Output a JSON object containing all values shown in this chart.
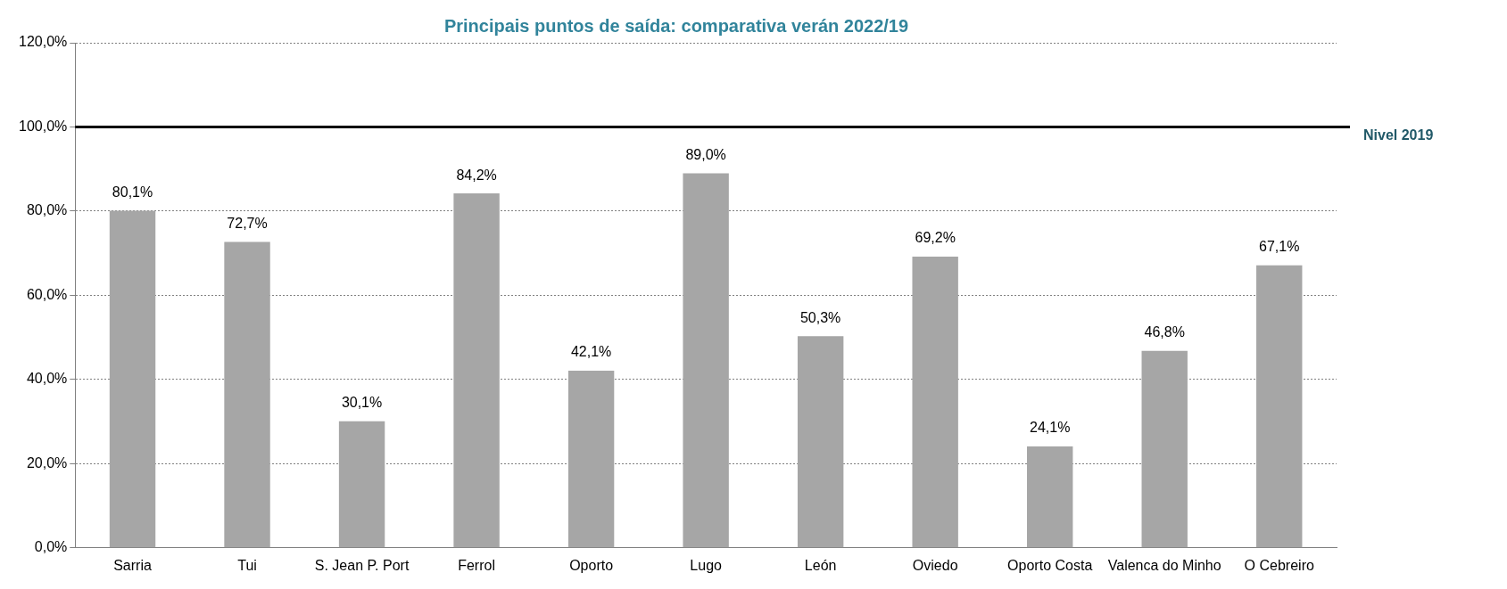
{
  "chart_data": {
    "type": "bar",
    "title": "Principais puntos de saída: comparativa verán 2022/19",
    "categories": [
      "Sarria",
      "Tui",
      "S. Jean P. Port",
      "Ferrol",
      "Oporto",
      "Lugo",
      "León",
      "Oviedo",
      "Oporto Costa",
      "Valenca do Minho",
      "O Cebreiro"
    ],
    "values": [
      80.1,
      72.7,
      30.1,
      84.2,
      42.1,
      89.0,
      50.3,
      69.2,
      24.1,
      46.8,
      67.1
    ],
    "value_labels": [
      "80,1%",
      "72,7%",
      "30,1%",
      "84,2%",
      "42,1%",
      "89,0%",
      "50,3%",
      "69,2%",
      "24,1%",
      "46,8%",
      "67,1%"
    ],
    "color": "#a6a6a6",
    "ylim": [
      0,
      120
    ],
    "yticks": [
      {
        "value": 0,
        "label": "0,0%"
      },
      {
        "value": 20,
        "label": "20,0%"
      },
      {
        "value": 40,
        "label": "40,0%"
      },
      {
        "value": 60,
        "label": "60,0%"
      },
      {
        "value": 80,
        "label": "80,0%"
      },
      {
        "value": 100,
        "label": "100,0%"
      },
      {
        "value": 120,
        "label": "120,0%"
      }
    ],
    "grid": "y",
    "ref_lines": [
      {
        "axis": "y",
        "value": 100,
        "label": "Nivel 2019",
        "color": "#000000"
      }
    ]
  }
}
